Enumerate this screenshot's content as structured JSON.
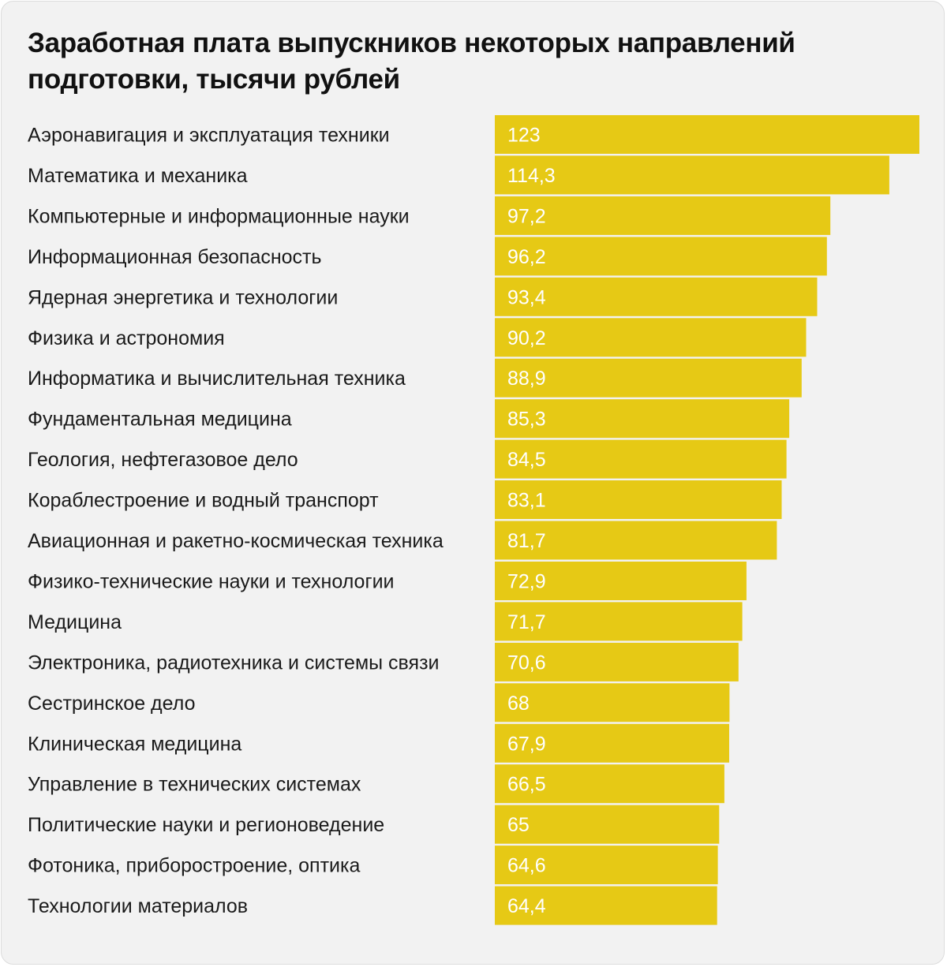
{
  "chart_data": {
    "type": "bar",
    "orientation": "horizontal",
    "title": "Заработная плата выпускников некоторых направлений подготовки, тысячи рублей",
    "categories": [
      "Аэронавигация и эксплуатация техники",
      "Математика и механика",
      "Компьютерные и информационные науки",
      "Информационная безопасность",
      "Ядерная энергетика и технологии",
      "Физика и астрономия",
      "Информатика и вычислительная техника",
      "Фундаментальная медицина",
      "Геология, нефтегазовое дело",
      "Кораблестроение и водный транспорт",
      "Авиационная и ракетно-космическая техника",
      "Физико-технические науки и технологии",
      "Медицина",
      "Электроника, радиотехника и системы связи",
      "Сестринское дело",
      "Клиническая медицина",
      "Управление в технических системах",
      "Политические науки и регионоведение",
      "Фотоника, приборостроение, оптика",
      "Технологии материалов"
    ],
    "values": [
      123,
      114.3,
      97.2,
      96.2,
      93.4,
      90.2,
      88.9,
      85.3,
      84.5,
      83.1,
      81.7,
      72.9,
      71.7,
      70.6,
      68,
      67.9,
      66.5,
      65,
      64.6,
      64.4
    ],
    "value_labels": [
      "123",
      "114,3",
      "97,2",
      "96,2",
      "93,4",
      "90,2",
      "88,9",
      "85,3",
      "84,5",
      "83,1",
      "81,7",
      "72,9",
      "71,7",
      "70,6",
      "68",
      "67,9",
      "66,5",
      "65",
      "64,6",
      "64,4"
    ],
    "xlim": [
      0,
      123
    ],
    "bar_color": "#e6c915",
    "value_label_color": "#ffffff",
    "background_color": "#f2f2f2",
    "grid": false,
    "axes_visible": false,
    "legend": "none"
  }
}
